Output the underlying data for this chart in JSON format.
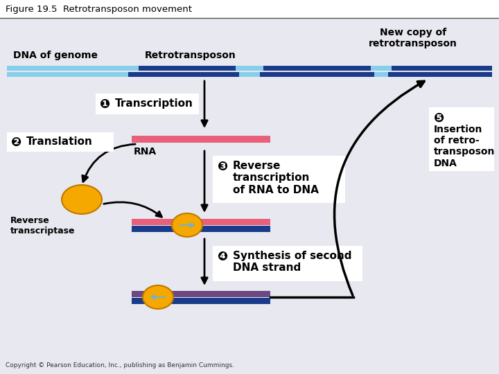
{
  "title": "Figure 19.5  Retrotransposon movement",
  "bg_color": "#e8e8f0",
  "title_bg": "#ffffff",
  "dna_light": "#87ceeb",
  "dna_dark": "#1a3a8a",
  "rna_color": "#e8607a",
  "enzyme_color": "#f5a800",
  "enzyme_edge": "#c07800",
  "arrow_inner": "#7aaecc",
  "label_dna": "DNA of genome",
  "label_retrotransposon": "Retrotransposon",
  "label_new_copy": "New copy of\nretrotransposon",
  "label_rna": "RNA",
  "label_rev_trans": "Reverse\ntranscriptase",
  "step1": "Transcription",
  "step2": "Translation",
  "step3": "Reverse\ntranscription\nof RNA to DNA",
  "step4": "Synthesis of second\nDNA strand",
  "step5": "Insertion\nof retro-\ntransposon\nDNA",
  "copyright": "Copyright © Pearson Education, Inc., publishing as Benjamin Cummings."
}
